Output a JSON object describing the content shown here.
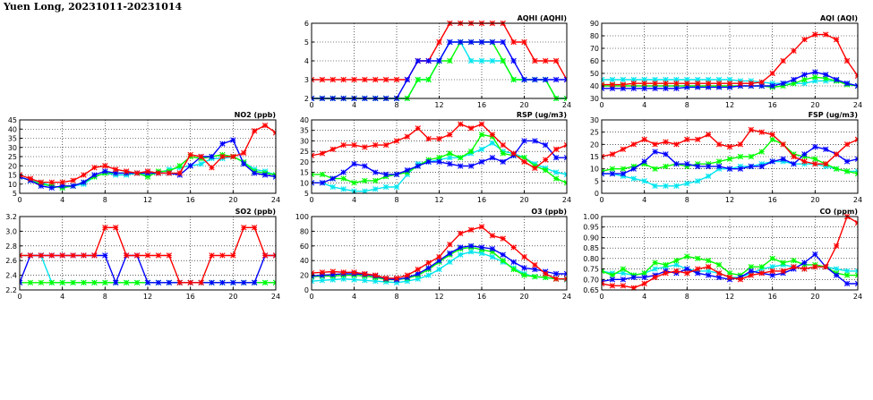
{
  "title": "Yuen Long, 20231011-20231014",
  "series_colors": [
    "#ff0000",
    "#00ff00",
    "#0000ff",
    "#00e5ee"
  ],
  "chart_data": [
    {
      "id": "aqhi",
      "type": "line",
      "title": "AQHI (AQHI)",
      "xlim": [
        0,
        24
      ],
      "xticks": [
        0,
        4,
        8,
        12,
        16,
        20,
        24
      ],
      "ylim": [
        2,
        6
      ],
      "yticks": [
        "2",
        "3",
        "4",
        "5",
        "6"
      ],
      "grid": true,
      "series": [
        {
          "color": "#ff0000",
          "values": [
            3,
            3,
            3,
            3,
            3,
            3,
            3,
            3,
            3,
            3,
            4,
            4,
            5,
            6,
            6,
            6,
            6,
            6,
            6,
            5,
            5,
            4,
            4,
            4,
            3
          ]
        },
        {
          "color": "#00e5ee",
          "values": [
            2,
            2,
            2,
            2,
            2,
            2,
            2,
            2,
            2,
            2,
            3,
            3,
            4,
            5,
            5,
            4,
            4,
            4,
            4,
            3,
            3,
            3,
            3,
            2,
            2
          ]
        },
        {
          "color": "#00ff00",
          "values": [
            2,
            2,
            2,
            2,
            2,
            2,
            2,
            2,
            2,
            2,
            3,
            3,
            4,
            4,
            5,
            5,
            5,
            5,
            4,
            3,
            3,
            3,
            3,
            2,
            2
          ]
        },
        {
          "color": "#0000ff",
          "values": [
            2,
            2,
            2,
            2,
            2,
            2,
            2,
            2,
            2,
            3,
            4,
            4,
            4,
            5,
            5,
            5,
            5,
            5,
            5,
            4,
            3,
            3,
            3,
            3,
            3
          ]
        }
      ]
    },
    {
      "id": "aqi",
      "type": "line",
      "title": "AQI (AQI)",
      "xlim": [
        0,
        24
      ],
      "xticks": [
        0,
        4,
        8,
        12,
        16,
        20,
        24
      ],
      "ylim": [
        30,
        90
      ],
      "yticks": [
        "30",
        "40",
        "50",
        "60",
        "70",
        "80",
        "90"
      ],
      "grid": true,
      "series": [
        {
          "color": "#00e5ee",
          "values": [
            45,
            45,
            45,
            45,
            45,
            45,
            45,
            45,
            45,
            45,
            45,
            45,
            45,
            44,
            44,
            43,
            42,
            42,
            42,
            42,
            44,
            44,
            44,
            42,
            40
          ]
        },
        {
          "color": "#00ff00",
          "values": [
            40,
            40,
            40,
            40,
            40,
            40,
            40,
            40,
            40,
            40,
            40,
            40,
            40,
            40,
            40,
            40,
            39,
            40,
            42,
            45,
            47,
            46,
            44,
            41,
            40
          ]
        },
        {
          "color": "#0000ff",
          "values": [
            38,
            38,
            38,
            38,
            38,
            38,
            38,
            38,
            39,
            39,
            39,
            39,
            39,
            40,
            40,
            40,
            40,
            42,
            45,
            49,
            51,
            49,
            45,
            42,
            40
          ]
        },
        {
          "color": "#ff0000",
          "values": [
            41,
            41,
            41,
            42,
            42,
            42,
            42,
            42,
            42,
            42,
            42,
            42,
            42,
            42,
            42,
            43,
            50,
            60,
            68,
            77,
            81,
            81,
            77,
            60,
            48
          ]
        }
      ]
    },
    {
      "id": "no2",
      "type": "line",
      "title": "NO2 (ppb)",
      "xlim": [
        0,
        24
      ],
      "xticks": [
        0,
        4,
        8,
        12,
        16,
        20,
        24
      ],
      "ylim": [
        5,
        45
      ],
      "yticks": [
        "5",
        "10",
        "15",
        "20",
        "25",
        "30",
        "35",
        "40",
        "45"
      ],
      "grid": true,
      "series": [
        {
          "color": "#00e5ee",
          "values": [
            14,
            12,
            11,
            9,
            8,
            9,
            10,
            14,
            16,
            15,
            15,
            16,
            15,
            16,
            18,
            19,
            20,
            21,
            24,
            24,
            25,
            22,
            18,
            17,
            15
          ]
        },
        {
          "color": "#00ff00",
          "values": [
            14,
            12,
            10,
            9,
            8,
            9,
            11,
            14,
            16,
            16,
            16,
            16,
            14,
            17,
            17,
            20,
            25,
            24,
            25,
            26,
            25,
            22,
            17,
            16,
            15
          ]
        },
        {
          "color": "#0000ff",
          "values": [
            14,
            12,
            9,
            8,
            9,
            9,
            11,
            15,
            17,
            16,
            16,
            16,
            16,
            16,
            16,
            15,
            20,
            25,
            25,
            32,
            34,
            21,
            16,
            15,
            14
          ]
        },
        {
          "color": "#ff0000",
          "values": [
            15,
            13,
            11,
            11,
            11,
            12,
            15,
            19,
            20,
            18,
            17,
            16,
            17,
            16,
            16,
            16,
            26,
            25,
            19,
            25,
            25,
            27,
            39,
            42,
            38
          ]
        }
      ]
    },
    {
      "id": "rsp",
      "type": "line",
      "title": "RSP (ug/m3)",
      "xlim": [
        0,
        24
      ],
      "xticks": [
        0,
        4,
        8,
        12,
        16,
        20,
        24
      ],
      "ylim": [
        5,
        40
      ],
      "yticks": [
        "5",
        "10",
        "15",
        "20",
        "25",
        "30",
        "35",
        "40"
      ],
      "grid": true,
      "series": [
        {
          "color": "#00e5ee",
          "values": [
            10,
            10,
            8,
            7,
            6,
            6,
            7,
            8,
            8,
            14,
            19,
            20,
            21,
            22,
            22,
            24,
            26,
            29,
            25,
            24,
            22,
            19,
            17,
            15,
            14
          ]
        },
        {
          "color": "#00ff00",
          "values": [
            14,
            14,
            12,
            12,
            10,
            11,
            11,
            13,
            14,
            15,
            18,
            21,
            22,
            24,
            22,
            25,
            33,
            32,
            24,
            23,
            22,
            18,
            16,
            12,
            10
          ]
        },
        {
          "color": "#0000ff",
          "values": [
            10,
            10,
            12,
            15,
            19,
            18,
            15,
            14,
            14,
            16,
            18,
            20,
            20,
            19,
            18,
            18,
            20,
            22,
            20,
            23,
            30,
            30,
            28,
            22,
            22
          ]
        },
        {
          "color": "#ff0000",
          "values": [
            23,
            24,
            26,
            28,
            28,
            27,
            28,
            28,
            30,
            32,
            36,
            31,
            31,
            33,
            38,
            36,
            38,
            33,
            28,
            24,
            20,
            17,
            21,
            26,
            28
          ]
        }
      ]
    },
    {
      "id": "fsp",
      "type": "line",
      "title": "FSP (ug/m3)",
      "xlim": [
        0,
        24
      ],
      "xticks": [
        0,
        4,
        8,
        12,
        16,
        20,
        24
      ],
      "ylim": [
        0,
        30
      ],
      "yticks": [
        "0",
        "5",
        "10",
        "15",
        "20",
        "25",
        "30"
      ],
      "grid": true,
      "series": [
        {
          "color": "#00e5ee",
          "values": [
            8,
            8,
            7,
            6,
            5,
            3,
            3,
            3,
            4,
            5,
            7,
            10,
            10,
            11,
            11,
            12,
            13,
            13,
            12,
            12,
            12,
            11,
            10,
            9,
            9
          ]
        },
        {
          "color": "#00ff00",
          "values": [
            9,
            10,
            10,
            11,
            12,
            10,
            11,
            12,
            11,
            12,
            12,
            13,
            14,
            15,
            15,
            17,
            22,
            20,
            16,
            15,
            14,
            12,
            10,
            9,
            8
          ]
        },
        {
          "color": "#0000ff",
          "values": [
            8,
            8,
            8,
            10,
            13,
            17,
            16,
            12,
            12,
            11,
            11,
            11,
            10,
            10,
            11,
            11,
            13,
            14,
            12,
            16,
            19,
            18,
            16,
            13,
            14
          ]
        },
        {
          "color": "#ff0000",
          "values": [
            15,
            16,
            18,
            20,
            22,
            20,
            21,
            20,
            22,
            22,
            24,
            20,
            19,
            20,
            26,
            25,
            24,
            20,
            15,
            13,
            12,
            12,
            16,
            20,
            22
          ]
        }
      ]
    },
    {
      "id": "so2",
      "type": "line",
      "title": "SO2 (ppb)",
      "xlim": [
        0,
        24
      ],
      "xticks": [
        0,
        4,
        8,
        12,
        16,
        20,
        24
      ],
      "ylim": [
        2.2,
        3.2
      ],
      "yticks": [
        "2.2",
        "2.4",
        "2.6",
        "2.8",
        "3.0",
        "3.2"
      ],
      "grid": true,
      "series": [
        {
          "color": "#00e5ee",
          "values": [
            2.67,
            2.67,
            2.67,
            2.3,
            2.3,
            2.3,
            2.3,
            2.3,
            2.3,
            2.3,
            2.3,
            2.3,
            2.3,
            2.3,
            2.3,
            2.3,
            2.3,
            2.3,
            2.3,
            2.3,
            2.3,
            2.3,
            2.3,
            2.3,
            2.3
          ]
        },
        {
          "color": "#00ff00",
          "values": [
            2.3,
            2.3,
            2.3,
            2.3,
            2.3,
            2.3,
            2.3,
            2.3,
            2.3,
            2.3,
            2.3,
            2.3,
            2.3,
            2.3,
            2.3,
            2.3,
            2.3,
            2.3,
            2.3,
            2.3,
            2.3,
            2.3,
            2.3,
            2.3,
            2.3
          ]
        },
        {
          "color": "#0000ff",
          "values": [
            2.3,
            2.67,
            2.67,
            2.67,
            2.67,
            2.67,
            2.67,
            2.67,
            2.67,
            2.3,
            2.67,
            2.67,
            2.3,
            2.3,
            2.3,
            2.3,
            2.3,
            2.3,
            2.3,
            2.3,
            2.3,
            2.3,
            2.3,
            2.67,
            2.67
          ]
        },
        {
          "color": "#ff0000",
          "values": [
            2.67,
            2.67,
            2.67,
            2.67,
            2.67,
            2.67,
            2.67,
            2.67,
            3.05,
            3.05,
            2.67,
            2.67,
            2.67,
            2.67,
            2.67,
            2.3,
            2.3,
            2.3,
            2.67,
            2.67,
            2.67,
            3.05,
            3.05,
            2.67,
            2.67
          ]
        }
      ]
    },
    {
      "id": "o3",
      "type": "line",
      "title": "O3 (ppb)",
      "xlim": [
        0,
        24
      ],
      "xticks": [
        0,
        4,
        8,
        12,
        16,
        20,
        24
      ],
      "ylim": [
        0,
        100
      ],
      "yticks": [
        "0",
        "20",
        "40",
        "60",
        "80",
        "100"
      ],
      "grid": true,
      "series": [
        {
          "color": "#00e5ee",
          "values": [
            12,
            13,
            14,
            15,
            14,
            13,
            12,
            11,
            10,
            12,
            15,
            20,
            28,
            38,
            48,
            52,
            50,
            45,
            38,
            30,
            22,
            18,
            17,
            15,
            14
          ]
        },
        {
          "color": "#00ff00",
          "values": [
            18,
            19,
            19,
            20,
            20,
            19,
            17,
            14,
            14,
            16,
            20,
            28,
            38,
            48,
            56,
            58,
            55,
            52,
            40,
            28,
            20,
            18,
            17,
            15,
            15
          ]
        },
        {
          "color": "#0000ff",
          "values": [
            19,
            20,
            21,
            22,
            22,
            21,
            19,
            15,
            14,
            17,
            22,
            30,
            40,
            50,
            58,
            60,
            58,
            56,
            48,
            38,
            30,
            28,
            25,
            22,
            22
          ]
        },
        {
          "color": "#ff0000",
          "values": [
            23,
            24,
            25,
            24,
            24,
            22,
            20,
            16,
            16,
            20,
            28,
            37,
            45,
            62,
            77,
            82,
            86,
            74,
            70,
            58,
            45,
            34,
            22,
            15,
            15
          ]
        }
      ]
    },
    {
      "id": "co",
      "type": "line",
      "title": "CO (ppm)",
      "xlim": [
        0,
        24
      ],
      "xticks": [
        0,
        4,
        8,
        12,
        16,
        20,
        24
      ],
      "ylim": [
        0.65,
        1.0
      ],
      "yticks": [
        "0.65",
        "0.70",
        "0.75",
        "0.80",
        "0.85",
        "0.90",
        "0.95",
        "1.00"
      ],
      "grid": true,
      "series": [
        {
          "color": "#00e5ee",
          "values": [
            0.74,
            0.73,
            0.73,
            0.72,
            0.73,
            0.75,
            0.76,
            0.77,
            0.75,
            0.74,
            0.74,
            0.73,
            0.71,
            0.71,
            0.73,
            0.75,
            0.76,
            0.77,
            0.76,
            0.75,
            0.76,
            0.76,
            0.75,
            0.74,
            0.74
          ]
        },
        {
          "color": "#00ff00",
          "values": [
            0.74,
            0.72,
            0.75,
            0.72,
            0.73,
            0.78,
            0.77,
            0.79,
            0.81,
            0.8,
            0.79,
            0.77,
            0.73,
            0.72,
            0.76,
            0.76,
            0.8,
            0.78,
            0.79,
            0.77,
            0.77,
            0.76,
            0.73,
            0.72,
            0.72
          ]
        },
        {
          "color": "#0000ff",
          "values": [
            0.69,
            0.7,
            0.7,
            0.71,
            0.71,
            0.72,
            0.74,
            0.73,
            0.75,
            0.73,
            0.72,
            0.71,
            0.7,
            0.71,
            0.74,
            0.73,
            0.72,
            0.73,
            0.75,
            0.78,
            0.82,
            0.76,
            0.72,
            0.68,
            0.68
          ]
        },
        {
          "color": "#ff0000",
          "values": [
            0.68,
            0.67,
            0.67,
            0.66,
            0.68,
            0.71,
            0.73,
            0.74,
            0.73,
            0.75,
            0.76,
            0.73,
            0.71,
            0.7,
            0.72,
            0.73,
            0.74,
            0.74,
            0.76,
            0.75,
            0.76,
            0.76,
            0.86,
            1.0,
            0.97
          ]
        }
      ]
    }
  ]
}
